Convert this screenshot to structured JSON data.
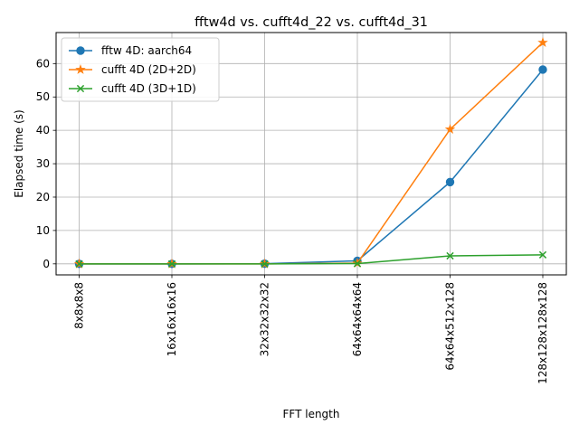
{
  "chart_data": {
    "type": "line",
    "title": "fftw4d vs. cufft4d_22 vs. cufft4d_31",
    "xlabel": "FFT length",
    "ylabel": "Elapsed time (s)",
    "categories": [
      "8x8x8x8",
      "16x16x16x16",
      "32x32x32x32",
      "64x64x64x64",
      "64x64x512x128",
      "128x128x128x128"
    ],
    "ylim": [
      -3.3,
      69.3
    ],
    "yticks": [
      0,
      10,
      20,
      30,
      40,
      50,
      60
    ],
    "grid": true,
    "legend_position": "upper-left",
    "series": [
      {
        "name": "fftw 4D: aarch64",
        "marker": "circle",
        "color": "#1f77b4",
        "values": [
          0.0,
          0.0,
          0.05,
          0.9,
          24.5,
          58.2
        ]
      },
      {
        "name": "cufft 4D (2D+2D)",
        "marker": "star",
        "color": "#ff7f0e",
        "values": [
          0.0,
          0.0,
          0.0,
          0.2,
          40.3,
          66.3
        ]
      },
      {
        "name": "cufft 4D (3D+1D)",
        "marker": "x",
        "color": "#2ca02c",
        "values": [
          0.0,
          0.0,
          0.0,
          0.1,
          2.4,
          2.7
        ]
      }
    ]
  }
}
